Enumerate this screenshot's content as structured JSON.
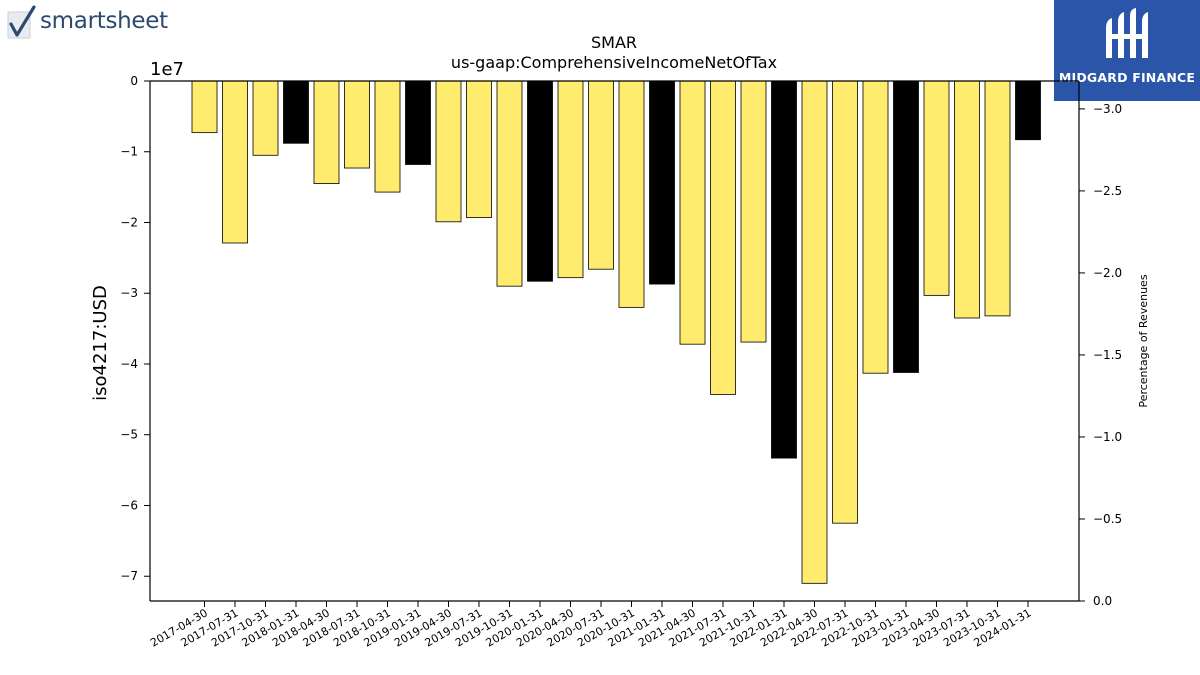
{
  "branding": {
    "left_logo_text": "smartsheet",
    "left_logo_icon": "checkmark-icon",
    "right_logo_text": "MIDGARD FINANCE",
    "right_logo_icon": "midgard-logo-icon",
    "right_logo_color": "#2b55a8"
  },
  "chart_data": {
    "type": "bar",
    "title": "SMAR",
    "subtitle": "us-gaap:ComprehensiveIncomeNetOfTax",
    "ylabel": "iso4217:USD",
    "y_offset_label": "1e7",
    "y2label": "Percentage of Revenues",
    "ylim": [
      -73500000,
      0
    ],
    "y_ticks": [
      {
        "value": 0,
        "label": "0"
      },
      {
        "value": -10000000,
        "label": "−1"
      },
      {
        "value": -20000000,
        "label": "−2"
      },
      {
        "value": -30000000,
        "label": "−3"
      },
      {
        "value": -40000000,
        "label": "−4"
      },
      {
        "value": -50000000,
        "label": "−5"
      },
      {
        "value": -60000000,
        "label": "−6"
      },
      {
        "value": -70000000,
        "label": "−7"
      }
    ],
    "y2_ticks": [
      {
        "value": 0.0,
        "label": "0.0"
      },
      {
        "value": -0.5,
        "label": "−0.5"
      },
      {
        "value": -1.0,
        "label": "−1.0"
      },
      {
        "value": -1.5,
        "label": "−1.5"
      },
      {
        "value": -2.0,
        "label": "−2.0"
      },
      {
        "value": -2.5,
        "label": "−2.5"
      },
      {
        "value": -3.0,
        "label": "−3.0"
      }
    ],
    "y2lim": [
      0.0,
      -3.17
    ],
    "grid": false,
    "colors": {
      "quarter": "#ffec6e",
      "fiscal_year_end": "#000000",
      "edge": "#000000"
    },
    "categories": [
      "2017-04-30",
      "2017-07-31",
      "2017-10-31",
      "2018-01-31",
      "2018-04-30",
      "2018-07-31",
      "2018-10-31",
      "2019-01-31",
      "2019-04-30",
      "2019-07-31",
      "2019-10-31",
      "2020-01-31",
      "2020-04-30",
      "2020-07-31",
      "2020-10-31",
      "2021-01-31",
      "2021-04-30",
      "2021-07-31",
      "2021-10-31",
      "2022-01-31",
      "2022-04-30",
      "2022-07-31",
      "2022-10-31",
      "2023-01-31",
      "2023-04-30",
      "2023-07-31",
      "2023-10-31",
      "2024-01-31"
    ],
    "values": [
      -7300000,
      -22900000,
      -10500000,
      -8800000,
      -14500000,
      -12300000,
      -15700000,
      -11800000,
      -19900000,
      -19300000,
      -29000000,
      -28300000,
      -27800000,
      -26600000,
      -32000000,
      -28700000,
      -37200000,
      -44300000,
      -36900000,
      -53300000,
      -71000000,
      -62500000,
      -41300000,
      -41200000,
      -30300000,
      -33500000,
      -33200000,
      -8300000
    ],
    "highlight": [
      false,
      false,
      false,
      true,
      false,
      false,
      false,
      true,
      false,
      false,
      false,
      true,
      false,
      false,
      false,
      true,
      false,
      false,
      false,
      true,
      false,
      false,
      false,
      true,
      false,
      false,
      false,
      true
    ]
  }
}
